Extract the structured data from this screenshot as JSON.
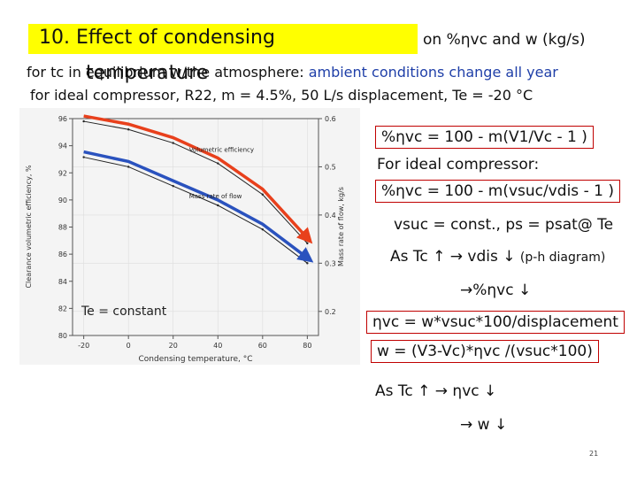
{
  "slide": {
    "title": "10. Effect of condensing",
    "title_second_line": "temperature",
    "title_tail": "on %ηvc  and w (kg/s)",
    "line2_prefix": "for tc in equilibrium w/the atmosphere: ",
    "line2_highlight": "ambient conditions change all year",
    "line3": "for ideal compressor, R22, m = 4.5%, 50 L/s displacement, Te = -20 °C",
    "page_number": "21"
  },
  "right_panel": {
    "eq1": "%ηvc = 100 - m(V1/Vc - 1 )",
    "ideal_label": "For ideal compressor:",
    "eq2": "%ηvc = 100 - m(vsuc/vdis - 1 )",
    "line_vsuc": "vsuc = const., ps = psat@ Te",
    "line_tc": "As Tc ↑  → vdis ↓",
    "line_tc_note": "(p-h diagram)",
    "line_eta_down": "→%ηvc ↓",
    "eq3": "ηvc = w*vsuc*100/displacement",
    "eq4": "w = (V3-Vc)*ηvc /(vsuc*100)",
    "line_tc2": "As Tc ↑  → ηvc ↓",
    "line_w": "→ w ↓"
  },
  "chart_data": {
    "type": "line",
    "xlabel": "Condensing temperature, °C",
    "ylabel_left": "Clearance volumetric efficiency, %",
    "ylabel_right": "Mass rate of flow, kg/s",
    "x_ticks": [
      "-20",
      "0",
      "20",
      "40",
      "60",
      "80"
    ],
    "y_left_ticks": [
      "80",
      "82",
      "84",
      "86",
      "88",
      "90",
      "92",
      "94",
      "96"
    ],
    "y_right_ticks": [
      "0.2",
      "0.3",
      "0.4",
      "0.5",
      "0.6"
    ],
    "xlim": [
      -25,
      85
    ],
    "ylim_left": [
      80,
      96
    ],
    "ylim_right": [
      0.15,
      0.6
    ],
    "annotation_constant": "Te = constant",
    "series": [
      {
        "name": "Volumetric efficiency",
        "axis": "left",
        "color": "#e8401c",
        "x": [
          -20,
          0,
          20,
          40,
          60,
          80
        ],
        "values": [
          95.8,
          95.2,
          94.2,
          92.7,
          90.4,
          86.8
        ]
      },
      {
        "name": "Mass rate of flow",
        "axis": "right",
        "color": "#2a52be",
        "x": [
          -20,
          0,
          20,
          40,
          60,
          80
        ],
        "values": [
          0.52,
          0.5,
          0.46,
          0.42,
          0.37,
          0.3
        ]
      }
    ]
  }
}
